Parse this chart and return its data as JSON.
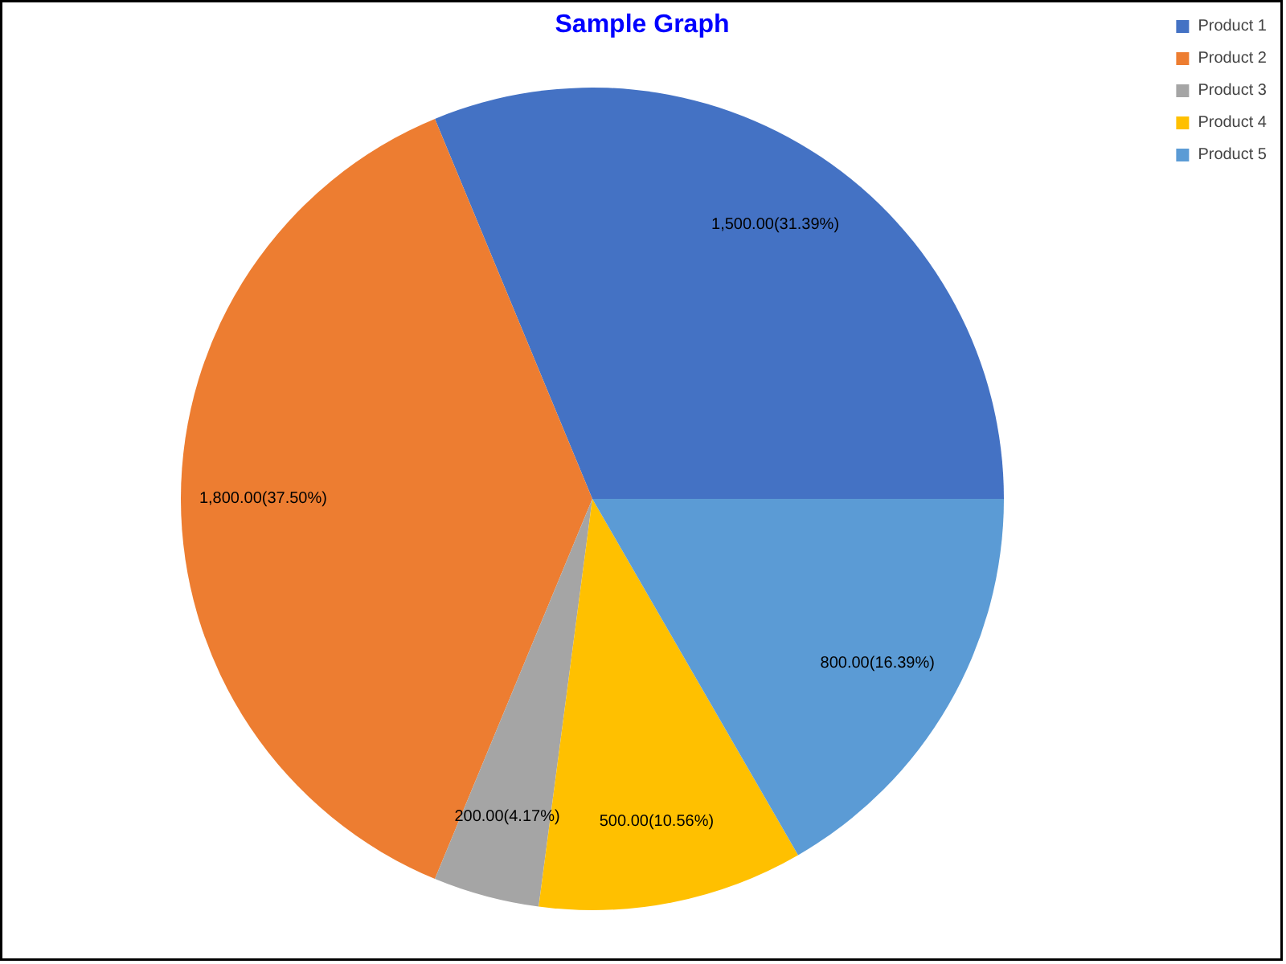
{
  "chart_data": {
    "type": "pie",
    "title": "Sample Graph",
    "categories": [
      "Product 1",
      "Product 2",
      "Product 3",
      "Product 4",
      "Product 5"
    ],
    "values": [
      1500,
      1800,
      200,
      500,
      800
    ],
    "colors": [
      "#4472c4",
      "#ed7d31",
      "#a5a5a5",
      "#ffc000",
      "#5b9bd5"
    ],
    "value_labels": [
      "1,500.00(31.39%)",
      "1,800.00(37.50%)",
      "200.00(4.17%)",
      "500.00(10.56%)",
      "800.00(16.39%)"
    ],
    "legend": "top right"
  }
}
